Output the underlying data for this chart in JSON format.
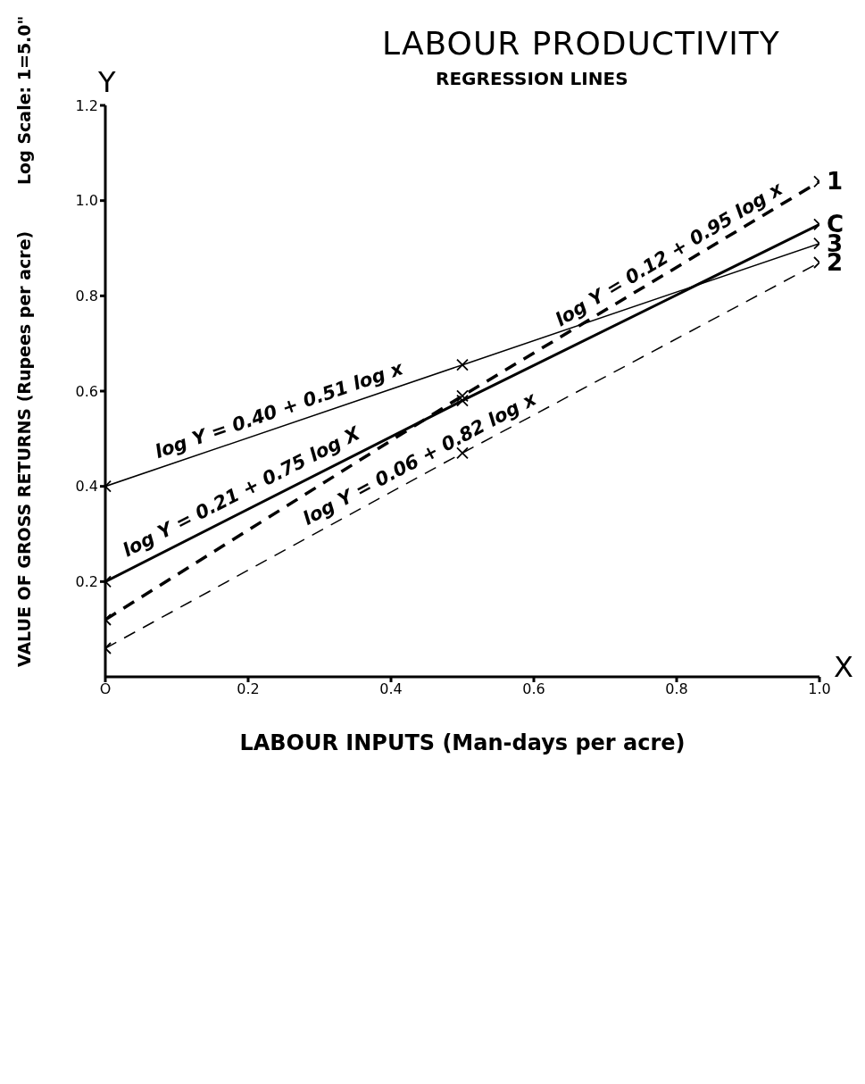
{
  "chart_data": {
    "type": "line",
    "title": "LABOUR PRODUCTIVITY",
    "subtitle": "REGRESSION LINES",
    "xlabel": "LABOUR INPUTS (Man-days per acre)",
    "ylabel": "VALUE OF GROSS RETURNS (Rupees per acre)",
    "x": [
      0,
      0.5,
      1.0
    ],
    "series": [
      {
        "name": "1",
        "color": "#000000",
        "line_style": "dashed",
        "values": [
          0.12,
          0.59,
          1.04
        ]
      },
      {
        "name": "C",
        "color": "#000000",
        "line_style": "solid",
        "values": [
          0.2,
          0.58,
          0.95
        ]
      },
      {
        "name": "3",
        "color": "#000000",
        "line_style": "solid",
        "values": [
          0.4,
          0.655,
          0.91
        ]
      },
      {
        "name": "2",
        "color": "#000000",
        "line_style": "dashed",
        "values": [
          0.06,
          0.47,
          0.87
        ]
      }
    ],
    "xlim": [
      0,
      1.0
    ],
    "xticks": [
      {
        "value": 0,
        "label": "O"
      },
      0.2,
      0.4,
      0.6,
      0.8,
      {
        "value": 1,
        "label": "1.0"
      }
    ],
    "ylim": [
      0,
      1.2
    ],
    "yticks": [
      0.2,
      0.4,
      0.6,
      0.8,
      {
        "value": 1,
        "label": "1.0"
      },
      1.2
    ],
    "marker": "cross",
    "legend": false,
    "grid": false,
    "annotations": [
      "Log Scale: 1=5.0\"",
      "Y",
      "X",
      {
        "text": "log Y = 0.12 + 0.95 log x",
        "x": 0.8,
        "y": 0.86
      },
      {
        "text": "log Y = 0.21 + 0.75 log X",
        "x": 0.2,
        "y": 0.36
      },
      {
        "text": "log Y = 0.40 + 0.51 log x",
        "x": 0.25,
        "y": 0.53
      },
      {
        "text": "log Y = 0.06 + 0.82 log x",
        "x": 0.45,
        "y": 0.43
      }
    ]
  }
}
